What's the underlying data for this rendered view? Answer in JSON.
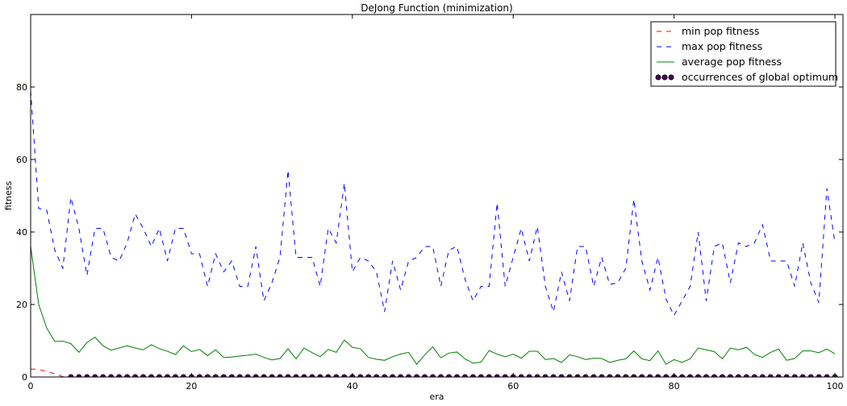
{
  "chart_data": {
    "type": "line",
    "title": "DeJong Function (minimization)",
    "xlabel": "era",
    "ylabel": "fitness",
    "xlim": [
      0,
      101
    ],
    "ylim": [
      0,
      100
    ],
    "xticks": [
      0,
      20,
      40,
      60,
      80,
      100
    ],
    "yticks": [
      0,
      20,
      40,
      60,
      80
    ],
    "grid": false,
    "legend_position": "top-right",
    "series": [
      {
        "name": "min pop fitness",
        "style": "dashed",
        "color": "#ff0000",
        "x": [
          0,
          1,
          2,
          3,
          4,
          5,
          6,
          7,
          8,
          9,
          10,
          11,
          12,
          13,
          14,
          15,
          16,
          17,
          18,
          19,
          20,
          21,
          22,
          23,
          24,
          25,
          26,
          27,
          28,
          29,
          30,
          31,
          32,
          33,
          34,
          35,
          36,
          37,
          38,
          39,
          40,
          41,
          42,
          43,
          44,
          45,
          46,
          47,
          48,
          49,
          50,
          51,
          52,
          53,
          54,
          55,
          56,
          57,
          58,
          59,
          60,
          61,
          62,
          63,
          64,
          65,
          66,
          67,
          68,
          69,
          70,
          71,
          72,
          73,
          74,
          75,
          76,
          77,
          78,
          79,
          80,
          81,
          82,
          83,
          84,
          85,
          86,
          87,
          88,
          89,
          90,
          91,
          92,
          93,
          94,
          95,
          96,
          97,
          98,
          99,
          100
        ],
        "values": [
          2.2,
          2.1,
          1.5,
          0.9,
          0.1,
          0,
          0,
          0,
          0,
          0,
          0,
          0,
          0,
          0,
          0,
          0,
          0,
          0,
          0,
          0,
          0,
          0,
          0,
          0,
          0,
          0,
          0,
          0,
          0,
          0,
          0,
          0,
          0,
          0,
          0,
          0,
          0,
          0,
          0,
          0,
          0,
          0,
          0,
          0,
          0,
          0,
          0,
          0,
          0,
          0,
          0,
          0,
          0,
          0,
          0,
          0,
          0,
          0,
          0,
          0,
          0,
          0,
          0,
          0,
          0,
          0,
          0,
          0,
          0,
          0,
          0,
          0,
          0,
          0,
          0,
          0,
          0,
          0,
          0,
          0,
          0,
          0,
          0,
          0,
          0,
          0,
          0,
          0,
          0,
          0,
          0,
          0,
          0,
          0,
          0,
          0,
          0,
          0,
          0,
          0,
          0
        ]
      },
      {
        "name": "max pop fitness",
        "style": "dashed",
        "color": "#0000ff",
        "x": [
          0,
          1,
          2,
          3,
          4,
          5,
          6,
          7,
          8,
          9,
          10,
          11,
          12,
          13,
          14,
          15,
          16,
          17,
          18,
          19,
          20,
          21,
          22,
          23,
          24,
          25,
          26,
          27,
          28,
          29,
          30,
          31,
          32,
          33,
          34,
          35,
          36,
          37,
          38,
          39,
          40,
          41,
          42,
          43,
          44,
          45,
          46,
          47,
          48,
          49,
          50,
          51,
          52,
          53,
          54,
          55,
          56,
          57,
          58,
          59,
          60,
          61,
          62,
          63,
          64,
          65,
          66,
          67,
          68,
          69,
          70,
          71,
          72,
          73,
          74,
          75,
          76,
          77,
          78,
          79,
          80,
          81,
          82,
          83,
          84,
          85,
          86,
          87,
          88,
          89,
          90,
          91,
          92,
          93,
          94,
          95,
          96,
          97,
          98,
          99,
          100
        ],
        "values": [
          79,
          46.5,
          46,
          35,
          30,
          49.5,
          41,
          28,
          41,
          41,
          33,
          32,
          37,
          45,
          41,
          36,
          41,
          32,
          41,
          41,
          34,
          34,
          25,
          34,
          29,
          32,
          25,
          25,
          36,
          21,
          26,
          33,
          57,
          33,
          33,
          33,
          25,
          41,
          37,
          53.5,
          29,
          33,
          32,
          29,
          18,
          32,
          24,
          32,
          33,
          36,
          36,
          25,
          35,
          36,
          27,
          21,
          25,
          25,
          48,
          25,
          33,
          41,
          32,
          41.5,
          25,
          18,
          29,
          21,
          36,
          36,
          25,
          33,
          25.5,
          26,
          30,
          49,
          32,
          24,
          33,
          21.5,
          17,
          21,
          25,
          40,
          21,
          36,
          37,
          26,
          37,
          36,
          37,
          42,
          32,
          32,
          32,
          25,
          37,
          26,
          20.5,
          52,
          37
        ]
      },
      {
        "name": "average pop fitness",
        "style": "solid",
        "color": "#008000",
        "x": [
          0,
          1,
          2,
          3,
          4,
          5,
          6,
          7,
          8,
          9,
          10,
          11,
          12,
          13,
          14,
          15,
          16,
          17,
          18,
          19,
          20,
          21,
          22,
          23,
          24,
          25,
          26,
          27,
          28,
          29,
          30,
          31,
          32,
          33,
          34,
          35,
          36,
          37,
          38,
          39,
          40,
          41,
          42,
          43,
          44,
          45,
          46,
          47,
          48,
          49,
          50,
          51,
          52,
          53,
          54,
          55,
          56,
          57,
          58,
          59,
          60,
          61,
          62,
          63,
          64,
          65,
          66,
          67,
          68,
          69,
          70,
          71,
          72,
          73,
          74,
          75,
          76,
          77,
          78,
          79,
          80,
          81,
          82,
          83,
          84,
          85,
          86,
          87,
          88,
          89,
          90,
          91,
          92,
          93,
          94,
          95,
          96,
          97,
          98,
          99,
          100
        ],
        "values": [
          36,
          20,
          13.5,
          9.8,
          9.9,
          9.2,
          6.8,
          9.5,
          11,
          8.6,
          7.4,
          8,
          8.6,
          8,
          7.5,
          8.9,
          7.8,
          7.1,
          6.2,
          8.6,
          7,
          7.6,
          5.9,
          7.5,
          5.4,
          5.5,
          5.8,
          6,
          6.3,
          5.4,
          4.7,
          5.1,
          7.8,
          5,
          8,
          6.7,
          5.6,
          7.6,
          6.8,
          10.2,
          8.2,
          7.8,
          5.4,
          4.9,
          4.6,
          5.6,
          6.3,
          6.8,
          3.5,
          6.1,
          8.3,
          5.3,
          6.6,
          6.9,
          5,
          3.8,
          4.1,
          7.3,
          6.3,
          5.6,
          6.3,
          5.2,
          7.1,
          7.1,
          4.8,
          5.1,
          4,
          6.1,
          5.6,
          4.8,
          5.2,
          5.1,
          4,
          4.6,
          5,
          7.2,
          5,
          4.5,
          7.2,
          3.5,
          4.8,
          4,
          5,
          8,
          7.5,
          7,
          5,
          8,
          7.5,
          8.2,
          6.2,
          5.4,
          6.8,
          7.7,
          4.6,
          5.1,
          7.2,
          7.2,
          6.7,
          7.7,
          6.4
        ]
      },
      {
        "name": "occurrences of global optimum",
        "style": "markers",
        "color": "#440154",
        "x": [
          5,
          6,
          7,
          8,
          9,
          10,
          11,
          12,
          13,
          14,
          15,
          16,
          17,
          18,
          19,
          20,
          21,
          22,
          23,
          24,
          25,
          26,
          27,
          28,
          29,
          30,
          31,
          32,
          33,
          34,
          35,
          36,
          37,
          38,
          39,
          40,
          41,
          42,
          43,
          44,
          45,
          46,
          47,
          48,
          49,
          50,
          51,
          52,
          53,
          54,
          55,
          56,
          57,
          58,
          59,
          60,
          61,
          62,
          63,
          64,
          65,
          66,
          67,
          68,
          69,
          70,
          71,
          72,
          73,
          74,
          75,
          76,
          77,
          78,
          79,
          80,
          81,
          82,
          83,
          84,
          85,
          86,
          87,
          88,
          89,
          90,
          91,
          92,
          93,
          94,
          95,
          96,
          97,
          98,
          99,
          100
        ],
        "values": [
          0,
          0,
          0,
          0,
          0,
          0,
          0,
          0,
          0,
          0,
          0,
          0,
          0,
          0,
          0,
          0,
          0,
          0,
          0,
          0,
          0,
          0,
          0,
          0,
          0,
          0,
          0,
          0,
          0,
          0,
          0,
          0,
          0,
          0,
          0,
          0,
          0,
          0,
          0,
          0,
          0,
          0,
          0,
          0,
          0,
          0,
          0,
          0,
          0,
          0,
          0,
          0,
          0,
          0,
          0,
          0,
          0,
          0,
          0,
          0,
          0,
          0,
          0,
          0,
          0,
          0,
          0,
          0,
          0,
          0,
          0,
          0,
          0,
          0,
          0,
          0,
          0,
          0,
          0,
          0,
          0,
          0,
          0,
          0,
          0,
          0,
          0,
          0,
          0,
          0,
          0,
          0,
          0,
          0,
          0,
          0
        ]
      }
    ]
  }
}
